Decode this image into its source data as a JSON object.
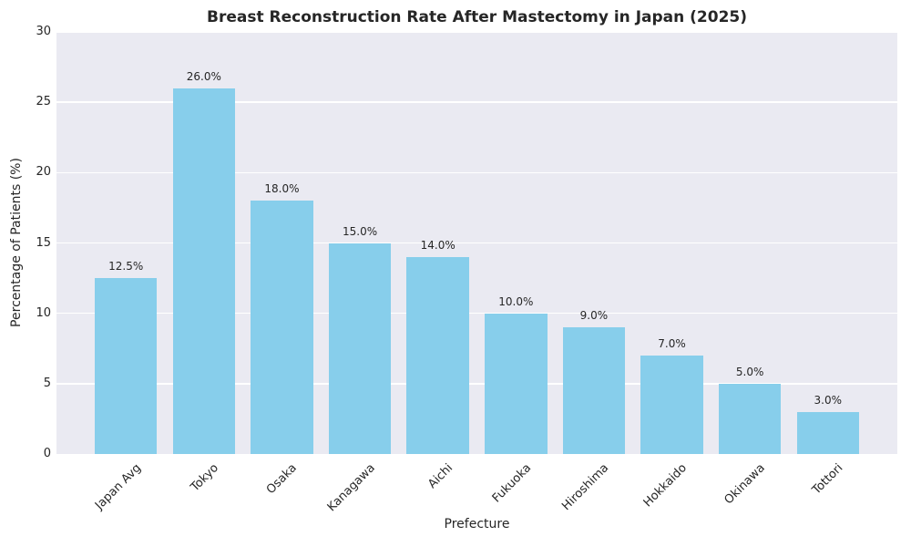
{
  "chart_data": {
    "type": "bar",
    "title": "Breast Reconstruction Rate After Mastectomy in Japan (2025)",
    "xlabel": "Prefecture",
    "ylabel": "Percentage of Patients (%)",
    "categories": [
      "Japan Avg",
      "Tokyo",
      "Osaka",
      "Kanagawa",
      "Aichi",
      "Fukuoka",
      "Hiroshima",
      "Hokkaido",
      "Okinawa",
      "Tottori"
    ],
    "values": [
      12.5,
      26.0,
      18.0,
      15.0,
      14.0,
      10.0,
      9.0,
      7.0,
      5.0,
      3.0
    ],
    "bar_labels": [
      "12.5%",
      "26.0%",
      "18.0%",
      "15.0%",
      "14.0%",
      "10.0%",
      "9.0%",
      "7.0%",
      "5.0%",
      "3.0%"
    ],
    "ylim": [
      0,
      30
    ],
    "yticks": [
      0,
      5,
      10,
      15,
      20,
      25,
      30
    ],
    "ytick_labels": [
      "0",
      "5",
      "10",
      "15",
      "20",
      "25",
      "30"
    ],
    "grid": true,
    "legend_position": "none",
    "x_tick_rotation_deg": 45,
    "colors": {
      "bar": "#87CEEB",
      "plot_background": "#EAEAF2",
      "figure_background": "#FFFFFF",
      "grid": "#FFFFFF",
      "text": "#262626"
    }
  }
}
